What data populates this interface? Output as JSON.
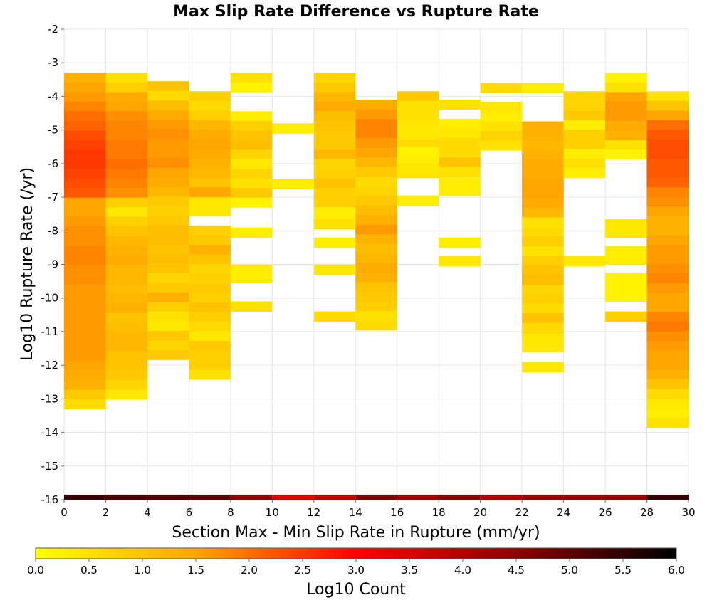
{
  "chart_data": {
    "type": "heatmap",
    "title": "Max Slip Rate Difference vs Rupture Rate",
    "xlabel": "Section Max - Min Slip Rate in Rupture (mm/yr)",
    "ylabel": "Log10 Rupture Rate (/yr)",
    "xlim": [
      0,
      30
    ],
    "ylim": [
      -16,
      -2
    ],
    "x_ticks": [
      "0",
      "2",
      "4",
      "6",
      "8",
      "10",
      "12",
      "14",
      "16",
      "18",
      "20",
      "22",
      "24",
      "26",
      "28",
      "30"
    ],
    "y_ticks": [
      "-2",
      "-3",
      "-4",
      "-5",
      "-6",
      "-7",
      "-8",
      "-9",
      "-10",
      "-11",
      "-12",
      "-13",
      "-14",
      "-15",
      "-16"
    ],
    "grid": true,
    "bin_width_x": 2,
    "bin_height_y": 0.2857,
    "colorbar": {
      "label": "Log10 Count",
      "min": 0.0,
      "max": 6.0,
      "ticks": [
        "0.0",
        "0.5",
        "1.0",
        "1.5",
        "2.0",
        "2.5",
        "3.0",
        "3.5",
        "4.0",
        "4.5",
        "5.0",
        "5.5",
        "6.0"
      ],
      "colors": [
        "#ffff00",
        "#ffa500",
        "#ff0000",
        "#8b0000",
        "#000000"
      ],
      "orientation": "horizontal"
    },
    "columns": [
      {
        "x_start": 0,
        "y_top": -3.3,
        "values": [
          1.3,
          1.5,
          1.6,
          1.8,
          2.0,
          2.1,
          2.3,
          2.4,
          2.5,
          2.5,
          2.4,
          2.3,
          2.2,
          1.5,
          1.5,
          1.6,
          1.7,
          1.7,
          1.8,
          1.8,
          1.7,
          1.7,
          1.6,
          1.6,
          1.6,
          1.6,
          1.6,
          1.6,
          1.6,
          1.6,
          1.5,
          1.4,
          1.3,
          0.9,
          0.6
        ]
      },
      {
        "x_start": 2,
        "y_top": -3.3,
        "values": [
          0.5,
          0.8,
          1.4,
          1.5,
          1.7,
          1.8,
          1.8,
          1.9,
          1.9,
          2.0,
          1.9,
          1.8,
          1.7,
          0.8,
          0.4,
          0.8,
          1.0,
          1.2,
          1.3,
          1.4,
          1.2,
          1.2,
          1.1,
          1.2,
          1.3,
          1.0,
          1.1,
          1.2,
          1.2,
          1.0,
          1.0,
          0.9,
          0.7,
          0.4
        ]
      },
      {
        "x_start": 4,
        "y_top": -3.55,
        "values": [
          1.0,
          0.6,
          1.1,
          1.4,
          1.6,
          1.7,
          1.6,
          1.6,
          1.7,
          1.5,
          1.4,
          1.2,
          0.9,
          0.8,
          0.9,
          1.1,
          1.1,
          1.0,
          1.1,
          1.0,
          0.7,
          0.9,
          1.3,
          0.8,
          0.5,
          0.4,
          0.9,
          0.7,
          0.9
        ]
      },
      {
        "x_start": 6,
        "y_top": -3.85,
        "values": [
          0.8,
          0.6,
          0.8,
          1.2,
          1.4,
          1.5,
          1.4,
          1.3,
          1.2,
          1.0,
          1.5,
          1.1,
          0.4,
          null,
          0.8,
          0.9,
          1.3,
          1.0,
          0.7,
          0.8,
          0.9,
          0.8,
          1.0,
          0.8,
          0.6,
          0.4,
          0.9,
          0.8,
          0.8,
          0.5
        ]
      },
      {
        "x_start": 8,
        "y_top": -3.3,
        "values": [
          0.5,
          0.2,
          null,
          null,
          0.3,
          0.8,
          1.0,
          1.1,
          0.7,
          0.4,
          0.7,
          0.5,
          0.9,
          0.2
        ]
      },
      {
        "x_start": 12,
        "y_top": -3.3,
        "values": [
          0.7,
          0.9,
          1.2,
          1.4,
          1.1,
          1.0,
          0.9,
          0.9,
          1.2,
          0.7,
          0.8,
          1.0,
          0.8,
          0.8,
          0.3,
          0.3
        ]
      },
      {
        "x_start": 14,
        "y_top": -4.1,
        "values": [
          1.4,
          1.6,
          1.8,
          1.8,
          1.6,
          1.5,
          1.2,
          0.9,
          0.6,
          0.7,
          0.9,
          1.1,
          1.3,
          1.6,
          1.3,
          1.1,
          1.2,
          1.4,
          1.3,
          1.0,
          0.9,
          0.8,
          0.5,
          0.6
        ]
      },
      {
        "x_start": 16,
        "y_top": -3.85,
        "values": [
          0.9,
          0.5,
          0.5,
          0.4,
          0.4,
          0.6,
          0.3,
          0.3,
          0.5
        ]
      },
      {
        "x_start": 18,
        "y_top": -4.1,
        "values": [
          0.5,
          null,
          0.3,
          0.4,
          0.6,
          0.6,
          1.0,
          0.5
        ]
      },
      {
        "x_start": 20,
        "y_top": -3.6,
        "values": [
          0.6,
          null,
          0.4,
          0.3,
          0.5,
          0.7,
          0.5
        ]
      },
      {
        "x_start": 22,
        "y_top": -3.6,
        "values": [
          0.3,
          null,
          null,
          null,
          1.3,
          1.3,
          1.2,
          1.3,
          1.4,
          1.4,
          1.5,
          1.5,
          1.4,
          1.2,
          0.5,
          0.6,
          0.8,
          0.5,
          0.8,
          1.0,
          1.1,
          0.7,
          0.8,
          0.6,
          1.0,
          0.6,
          0.8,
          0.4
        ]
      },
      {
        "x_start": 24,
        "y_top": -3.85,
        "values": [
          0.7,
          0.7,
          0.9,
          0.3,
          0.8,
          0.8,
          0.3,
          0.5,
          0.3
        ]
      },
      {
        "x_start": 26,
        "y_top": -3.3,
        "values": [
          0.2,
          0.5,
          1.5,
          1.6,
          1.6,
          1.4,
          1.3,
          0.5,
          0.2
        ]
      },
      {
        "x_start": 28,
        "y_top": -3.85,
        "values": [
          0.5,
          1.0,
          1.5,
          2.0,
          2.2,
          2.3,
          2.3,
          2.2,
          2.2,
          2.1,
          1.8,
          1.7,
          1.5,
          1.3,
          1.3,
          1.5,
          1.6,
          1.6,
          1.7,
          1.8,
          1.6,
          1.5,
          1.5,
          1.8,
          1.9,
          1.7,
          1.6,
          1.5,
          1.5,
          1.3,
          1.0,
          0.6,
          0.4,
          0.3,
          0.5
        ]
      }
    ],
    "extra_rows": [
      {
        "x_start": 6,
        "y_top": -7.0,
        "h": 0.3,
        "v": 0.4
      },
      {
        "x_start": 8,
        "y_top": -7.9,
        "h": 0.3,
        "v": 0.3
      },
      {
        "x_start": 8,
        "y_top": -9.0,
        "h": 0.55,
        "v": 0.3
      },
      {
        "x_start": 8,
        "y_top": -10.1,
        "h": 0.3,
        "v": 0.5
      },
      {
        "x_start": 10,
        "y_top": -4.8,
        "h": 0.3,
        "v": 0.3
      },
      {
        "x_start": 10,
        "y_top": -6.45,
        "h": 0.3,
        "v": 0.3
      },
      {
        "x_start": 12,
        "y_top": -7.65,
        "h": 0.3,
        "v": 0.5
      },
      {
        "x_start": 12,
        "y_top": -8.2,
        "h": 0.3,
        "v": 0.3
      },
      {
        "x_start": 12,
        "y_top": -9.0,
        "h": 0.3,
        "v": 0.4
      },
      {
        "x_start": 12,
        "y_top": -10.4,
        "h": 0.3,
        "v": 0.6
      },
      {
        "x_start": 16,
        "y_top": -5.5,
        "h": 0.3,
        "v": 0.2
      },
      {
        "x_start": 16,
        "y_top": -6.0,
        "h": 0.3,
        "v": 0.4
      },
      {
        "x_start": 16,
        "y_top": -6.95,
        "h": 0.3,
        "v": 0.3
      },
      {
        "x_start": 18,
        "y_top": -6.4,
        "h": 0.55,
        "v": 0.3
      },
      {
        "x_start": 18,
        "y_top": -8.2,
        "h": 0.3,
        "v": 0.3
      },
      {
        "x_start": 18,
        "y_top": -8.75,
        "h": 0.3,
        "v": 0.4
      },
      {
        "x_start": 22,
        "y_top": -11.05,
        "h": 0.3,
        "v": 0.4
      },
      {
        "x_start": 22,
        "y_top": -11.9,
        "h": 0.3,
        "v": 0.4
      },
      {
        "x_start": 24,
        "y_top": -8.75,
        "h": 0.3,
        "v": 0.4
      },
      {
        "x_start": 26,
        "y_top": -7.65,
        "h": 0.55,
        "v": 0.4
      },
      {
        "x_start": 26,
        "y_top": -8.45,
        "h": 0.55,
        "v": 0.3
      },
      {
        "x_start": 26,
        "y_top": -9.25,
        "h": 0.85,
        "v": 0.2
      },
      {
        "x_start": 26,
        "y_top": -10.4,
        "h": 0.3,
        "v": 0.8
      }
    ],
    "bottom_row": {
      "y_top": -15.85,
      "h": 0.15,
      "values": [
        5.4,
        5.2,
        5.1,
        5.0,
        4.4,
        3.4,
        3.8,
        4.6,
        4.2,
        4.5,
        4.0,
        4.3,
        4.3,
        4.3,
        5.4
      ]
    }
  }
}
